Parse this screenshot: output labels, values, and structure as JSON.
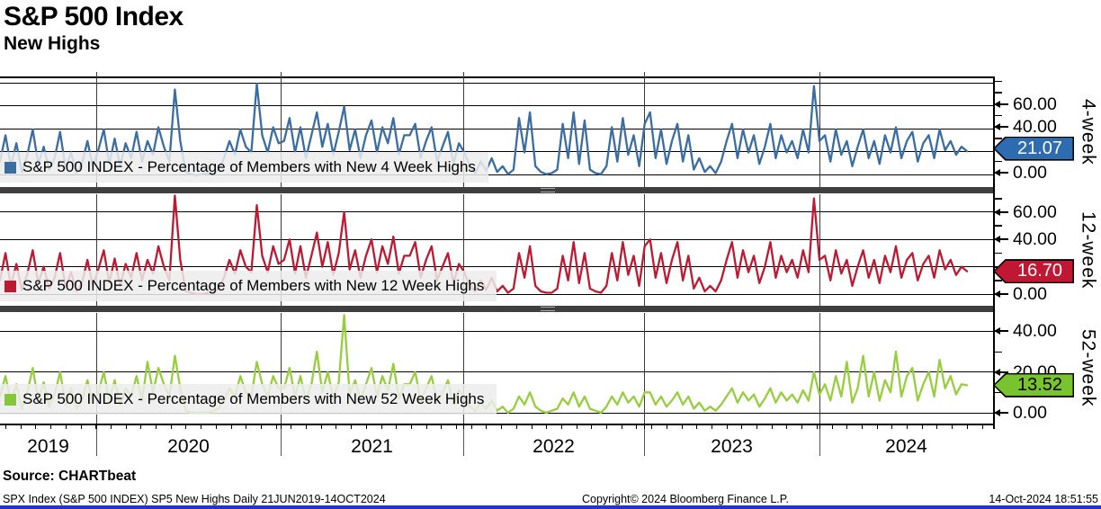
{
  "header": {
    "title": "S&P 500 Index",
    "subtitle": "New Highs"
  },
  "source_line": "Source: CHARTbeat",
  "footer": {
    "left": "SPX Index (S&P 500 INDEX) SP5 New Highs  Daily 21JUN2019-14OCT2024",
    "center": "Copyright© 2024 Bloomberg Finance L.P.",
    "right": "14-Oct-2024 18:51:55"
  },
  "colors": {
    "blue_line": "#3a6da2",
    "red_line": "#be1932",
    "green_line": "#97ce3e",
    "separator": "#3f3f3f",
    "bottom_bar": "#2433cf",
    "legend_band": "#ececec"
  },
  "chart_data": {
    "type": "line",
    "title": "S&P 500 Index - New Highs",
    "x_axis": {
      "categories": [
        "2019",
        "2020",
        "2021",
        "2022",
        "2023",
        "2024"
      ],
      "range": "Daily 21JUN2019-14OCT2024"
    },
    "panels": [
      {
        "id": "4week",
        "name": "4-week",
        "legend": "S&P 500 INDEX - Percentage of Members with New 4 Week Highs",
        "color": "#3a6da2",
        "swatch": "#3a6da2",
        "tag_bg": "#2d6cb0",
        "tag_text_color": "#ffffff",
        "last_value": "21.07",
        "last_value_num": 21.07,
        "ylim": [
          0,
          84
        ],
        "yticks_labeled": [
          60,
          40,
          0
        ],
        "yticks_minor": [
          80,
          70,
          50,
          30,
          10
        ],
        "gridlines": [
          80,
          60,
          40,
          20,
          0
        ],
        "values": [
          12,
          35,
          8,
          28,
          3,
          18,
          40,
          10,
          25,
          5,
          15,
          38,
          6,
          20,
          2,
          10,
          30,
          8,
          22,
          40,
          10,
          32,
          8,
          28,
          15,
          38,
          12,
          30,
          18,
          42,
          25,
          12,
          75,
          30,
          3,
          1,
          0,
          1,
          2,
          1,
          5,
          15,
          30,
          18,
          40,
          25,
          20,
          80,
          35,
          20,
          42,
          28,
          30,
          50,
          20,
          42,
          15,
          35,
          55,
          25,
          45,
          18,
          38,
          60,
          22,
          40,
          15,
          35,
          48,
          20,
          42,
          28,
          50,
          18,
          35,
          35,
          45,
          15,
          30,
          42,
          12,
          25,
          38,
          10,
          28,
          20,
          8,
          2,
          12,
          4,
          15,
          3,
          8,
          1,
          5,
          50,
          20,
          55,
          8,
          3,
          1,
          2,
          5,
          45,
          15,
          55,
          10,
          48,
          5,
          2,
          1,
          8,
          42,
          12,
          50,
          18,
          35,
          8,
          45,
          55,
          15,
          40,
          10,
          30,
          45,
          12,
          35,
          5,
          15,
          3,
          8,
          2,
          12,
          30,
          45,
          15,
          40,
          20,
          35,
          10,
          25,
          45,
          15,
          35,
          20,
          30,
          15,
          40,
          20,
          78,
          30,
          35,
          12,
          40,
          18,
          30,
          8,
          25,
          40,
          15,
          30,
          10,
          35,
          20,
          42,
          15,
          30,
          38,
          12,
          28,
          35,
          15,
          40,
          22,
          30,
          18,
          25,
          21.07
        ]
      },
      {
        "id": "12week",
        "name": "12-week",
        "legend": "S&P 500 INDEX - Percentage of Members with New 12 Week Highs",
        "color": "#be1932",
        "swatch": "#be1932",
        "tag_bg": "#c01732",
        "tag_text_color": "#ffffff",
        "last_value": "16.70",
        "last_value_num": 16.7,
        "ylim": [
          0,
          73
        ],
        "yticks_labeled": [
          60,
          40,
          0
        ],
        "yticks_minor": [
          70,
          50,
          30,
          20,
          10
        ],
        "gridlines": [
          60,
          40,
          20,
          0
        ],
        "values": [
          10,
          30,
          6,
          22,
          3,
          15,
          32,
          8,
          20,
          4,
          12,
          30,
          5,
          16,
          2,
          8,
          25,
          6,
          18,
          32,
          8,
          26,
          6,
          22,
          12,
          30,
          10,
          25,
          15,
          35,
          20,
          10,
          72,
          25,
          2,
          1,
          0,
          0,
          1,
          1,
          4,
          12,
          25,
          15,
          32,
          20,
          16,
          65,
          28,
          16,
          35,
          22,
          25,
          40,
          15,
          35,
          12,
          28,
          45,
          20,
          38,
          14,
          30,
          60,
          18,
          32,
          12,
          28,
          40,
          16,
          35,
          22,
          42,
          15,
          28,
          28,
          38,
          12,
          25,
          35,
          10,
          20,
          30,
          8,
          22,
          16,
          6,
          2,
          10,
          3,
          12,
          2,
          6,
          1,
          4,
          30,
          12,
          35,
          6,
          2,
          1,
          1,
          4,
          28,
          10,
          38,
          8,
          30,
          4,
          2,
          1,
          6,
          30,
          10,
          38,
          14,
          28,
          6,
          35,
          40,
          12,
          30,
          8,
          25,
          38,
          10,
          28,
          4,
          12,
          2,
          6,
          2,
          10,
          25,
          38,
          12,
          32,
          16,
          28,
          8,
          20,
          38,
          12,
          28,
          16,
          25,
          12,
          32,
          16,
          70,
          25,
          28,
          10,
          32,
          15,
          25,
          6,
          20,
          32,
          12,
          25,
          8,
          28,
          16,
          35,
          12,
          25,
          30,
          10,
          22,
          28,
          12,
          32,
          18,
          25,
          14,
          20,
          16.7
        ]
      },
      {
        "id": "52week",
        "name": "52-week",
        "legend": "S&P 500 INDEX - Percentage of Members with New 52 Week Highs",
        "color": "#97ce3e",
        "swatch": "#84c63c",
        "tag_bg": "#79c42e",
        "tag_text_color": "#000000",
        "last_value": "13.52",
        "last_value_num": 13.52,
        "ylim": [
          0,
          49
        ],
        "yticks_labeled": [
          40,
          20,
          0
        ],
        "yticks_minor": [
          30,
          10
        ],
        "gridlines": [
          40,
          20,
          0
        ],
        "values": [
          8,
          18,
          5,
          14,
          2,
          10,
          22,
          6,
          15,
          3,
          9,
          20,
          4,
          12,
          2,
          6,
          16,
          5,
          10,
          20,
          6,
          16,
          4,
          12,
          8,
          18,
          6,
          25,
          10,
          22,
          14,
          8,
          28,
          12,
          1,
          0,
          0,
          0,
          0,
          1,
          2,
          6,
          12,
          8,
          18,
          10,
          8,
          25,
          14,
          8,
          18,
          12,
          12,
          22,
          8,
          18,
          6,
          14,
          30,
          10,
          20,
          7,
          15,
          48,
          9,
          16,
          6,
          14,
          22,
          8,
          18,
          11,
          24,
          7,
          14,
          14,
          20,
          6,
          12,
          18,
          5,
          10,
          16,
          4,
          11,
          8,
          3,
          1,
          5,
          2,
          6,
          1,
          3,
          0,
          2,
          8,
          4,
          10,
          3,
          1,
          0,
          1,
          2,
          7,
          4,
          10,
          3,
          8,
          2,
          1,
          0,
          3,
          8,
          4,
          10,
          5,
          8,
          3,
          10,
          10,
          4,
          8,
          3,
          6,
          10,
          4,
          8,
          2,
          5,
          1,
          3,
          1,
          4,
          8,
          12,
          5,
          10,
          6,
          9,
          3,
          7,
          12,
          5,
          10,
          6,
          9,
          5,
          11,
          6,
          20,
          9,
          14,
          6,
          18,
          8,
          25,
          5,
          12,
          28,
          8,
          20,
          6,
          16,
          10,
          30,
          8,
          18,
          22,
          6,
          14,
          20,
          8,
          26,
          12,
          18,
          9,
          14,
          13.52
        ]
      }
    ]
  }
}
